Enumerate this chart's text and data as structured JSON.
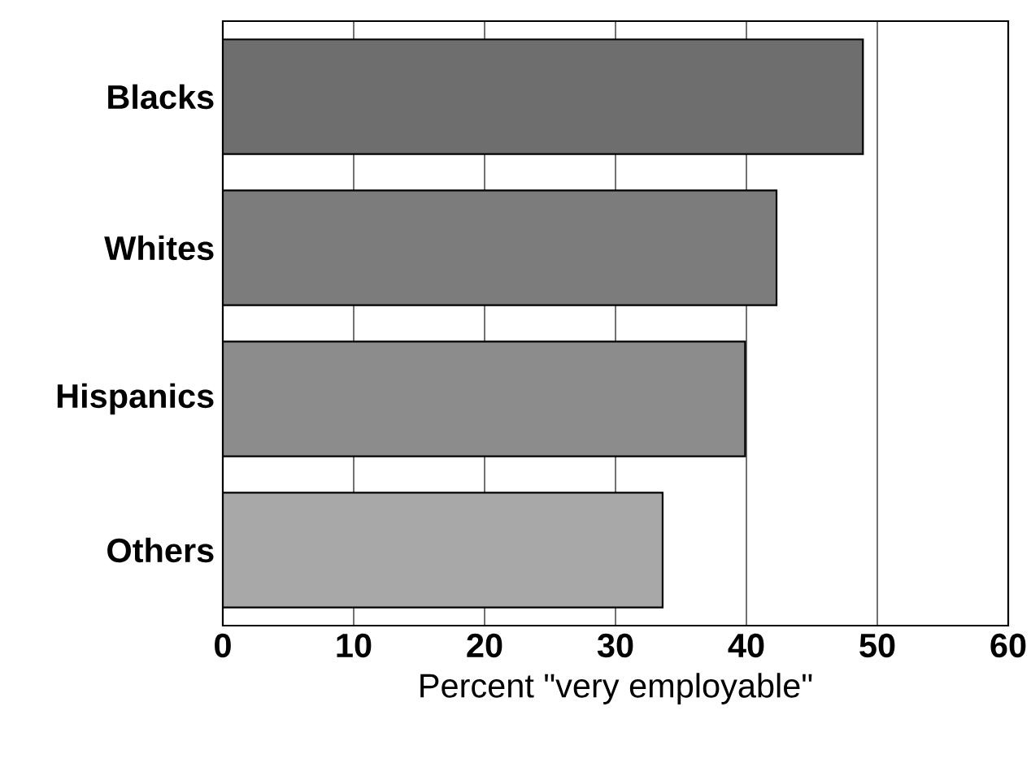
{
  "chart_data": {
    "type": "bar",
    "orientation": "horizontal",
    "xlabel": "Percent \"very employable\"",
    "categories": [
      "Blacks",
      "Whites",
      "Hispanics",
      "Others"
    ],
    "values": [
      48.9,
      42.3,
      39.9,
      33.6
    ],
    "colors": [
      "#6e6e6e",
      "#7c7c7c",
      "#8c8c8c",
      "#a8a8a8"
    ],
    "xlim": [
      0,
      60
    ],
    "xticks": [
      0,
      10,
      20,
      30,
      40,
      50,
      60
    ],
    "grid": "x"
  }
}
